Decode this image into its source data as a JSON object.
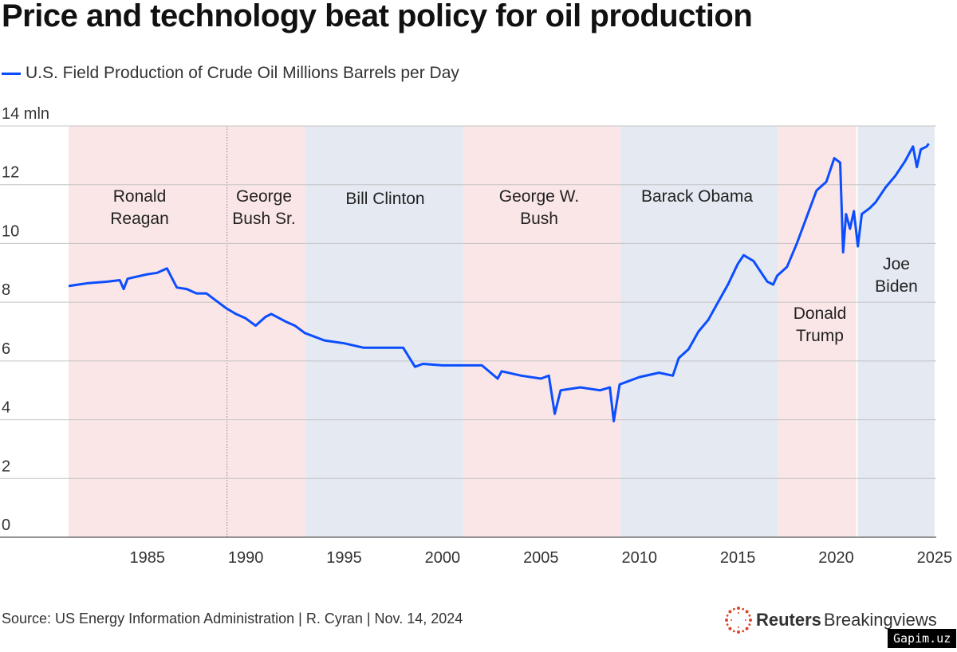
{
  "title": "Price and technology beat policy for oil production",
  "legend": "U.S. Field Production of Crude Oil Millions Barrels per Day",
  "source": "Source: US Energy Information Administration | R. Cyran | Nov. 14, 2024",
  "logo": {
    "bold": "Reuters",
    "light": "Breakingviews"
  },
  "watermark": "Gapim.uz",
  "chart_data": {
    "type": "line",
    "title": "Price and technology beat policy for oil production",
    "ylabel": "",
    "xlabel": "",
    "ylim": [
      0,
      14
    ],
    "xlim": [
      1981,
      2025
    ],
    "y_ticks": [
      "0",
      "2",
      "4",
      "6",
      "8",
      "10",
      "12",
      "14 mln"
    ],
    "x_ticks": [
      "1985",
      "1990",
      "1995",
      "2000",
      "2005",
      "2010",
      "2015",
      "2020",
      "2025"
    ],
    "grid": "horizontal",
    "line_color": "#0b4dff",
    "series": [
      {
        "name": "U.S. Field Production of Crude Oil Millions Barrels per Day",
        "points": [
          [
            1981.0,
            8.55
          ],
          [
            1981.5,
            8.6
          ],
          [
            1982.0,
            8.65
          ],
          [
            1983.0,
            8.7
          ],
          [
            1983.6,
            8.75
          ],
          [
            1983.8,
            8.45
          ],
          [
            1984.0,
            8.8
          ],
          [
            1985.0,
            8.95
          ],
          [
            1985.5,
            9.0
          ],
          [
            1986.0,
            9.15
          ],
          [
            1986.5,
            8.5
          ],
          [
            1987.0,
            8.45
          ],
          [
            1987.5,
            8.3
          ],
          [
            1988.0,
            8.3
          ],
          [
            1988.5,
            8.05
          ],
          [
            1989.0,
            7.8
          ],
          [
            1989.5,
            7.6
          ],
          [
            1990.0,
            7.45
          ],
          [
            1990.5,
            7.2
          ],
          [
            1991.0,
            7.5
          ],
          [
            1991.3,
            7.6
          ],
          [
            1992.0,
            7.35
          ],
          [
            1992.5,
            7.2
          ],
          [
            1993.0,
            6.95
          ],
          [
            1994.0,
            6.7
          ],
          [
            1995.0,
            6.6
          ],
          [
            1996.0,
            6.45
          ],
          [
            1997.0,
            6.45
          ],
          [
            1998.0,
            6.45
          ],
          [
            1998.6,
            5.8
          ],
          [
            1999.0,
            5.9
          ],
          [
            2000.0,
            5.85
          ],
          [
            2001.0,
            5.85
          ],
          [
            2002.0,
            5.85
          ],
          [
            2002.8,
            5.4
          ],
          [
            2003.0,
            5.65
          ],
          [
            2004.0,
            5.5
          ],
          [
            2005.0,
            5.4
          ],
          [
            2005.4,
            5.5
          ],
          [
            2005.7,
            4.2
          ],
          [
            2006.0,
            5.0
          ],
          [
            2007.0,
            5.1
          ],
          [
            2008.0,
            5.0
          ],
          [
            2008.5,
            5.1
          ],
          [
            2008.7,
            3.95
          ],
          [
            2009.0,
            5.2
          ],
          [
            2010.0,
            5.45
          ],
          [
            2011.0,
            5.6
          ],
          [
            2011.7,
            5.5
          ],
          [
            2012.0,
            6.1
          ],
          [
            2012.5,
            6.4
          ],
          [
            2013.0,
            7.0
          ],
          [
            2013.5,
            7.4
          ],
          [
            2014.0,
            8.0
          ],
          [
            2014.5,
            8.6
          ],
          [
            2015.0,
            9.3
          ],
          [
            2015.3,
            9.6
          ],
          [
            2015.8,
            9.4
          ],
          [
            2016.0,
            9.2
          ],
          [
            2016.5,
            8.7
          ],
          [
            2016.8,
            8.6
          ],
          [
            2017.0,
            8.9
          ],
          [
            2017.5,
            9.2
          ],
          [
            2018.0,
            10.0
          ],
          [
            2018.5,
            10.9
          ],
          [
            2019.0,
            11.8
          ],
          [
            2019.5,
            12.1
          ],
          [
            2019.9,
            12.9
          ],
          [
            2020.2,
            12.75
          ],
          [
            2020.35,
            9.7
          ],
          [
            2020.5,
            11.0
          ],
          [
            2020.7,
            10.5
          ],
          [
            2020.9,
            11.1
          ],
          [
            2021.1,
            9.9
          ],
          [
            2021.3,
            11.0
          ],
          [
            2021.7,
            11.2
          ],
          [
            2022.0,
            11.4
          ],
          [
            2022.5,
            11.9
          ],
          [
            2023.0,
            12.3
          ],
          [
            2023.5,
            12.8
          ],
          [
            2023.9,
            13.3
          ],
          [
            2024.1,
            12.6
          ],
          [
            2024.3,
            13.2
          ],
          [
            2024.6,
            13.3
          ],
          [
            2024.7,
            13.4
          ]
        ]
      }
    ],
    "annotations": [
      {
        "label": [
          "Ronald",
          "Reagan"
        ],
        "start": 1981.0,
        "end": 1989.05,
        "party": "R"
      },
      {
        "label": [
          "George",
          "Bush Sr."
        ],
        "start": 1989.05,
        "end": 1993.05,
        "party": "R"
      },
      {
        "label": [
          "Bill Clinton"
        ],
        "start": 1993.05,
        "end": 2001.05,
        "party": "D"
      },
      {
        "label": [
          "George W.",
          "Bush"
        ],
        "start": 2001.05,
        "end": 2009.05,
        "party": "R"
      },
      {
        "label": [
          "Barack Obama"
        ],
        "start": 2009.05,
        "end": 2017.05,
        "party": "D"
      },
      {
        "label": [
          "Donald",
          "Trump"
        ],
        "start": 2017.05,
        "end": 2021.05,
        "party": "R"
      },
      {
        "label": [
          "Joe",
          "Biden"
        ],
        "start": 2021.05,
        "end": 2025.0,
        "party": "D"
      }
    ],
    "party_colors": {
      "R": "#fbe6e7",
      "D": "#e4e9f2"
    }
  }
}
